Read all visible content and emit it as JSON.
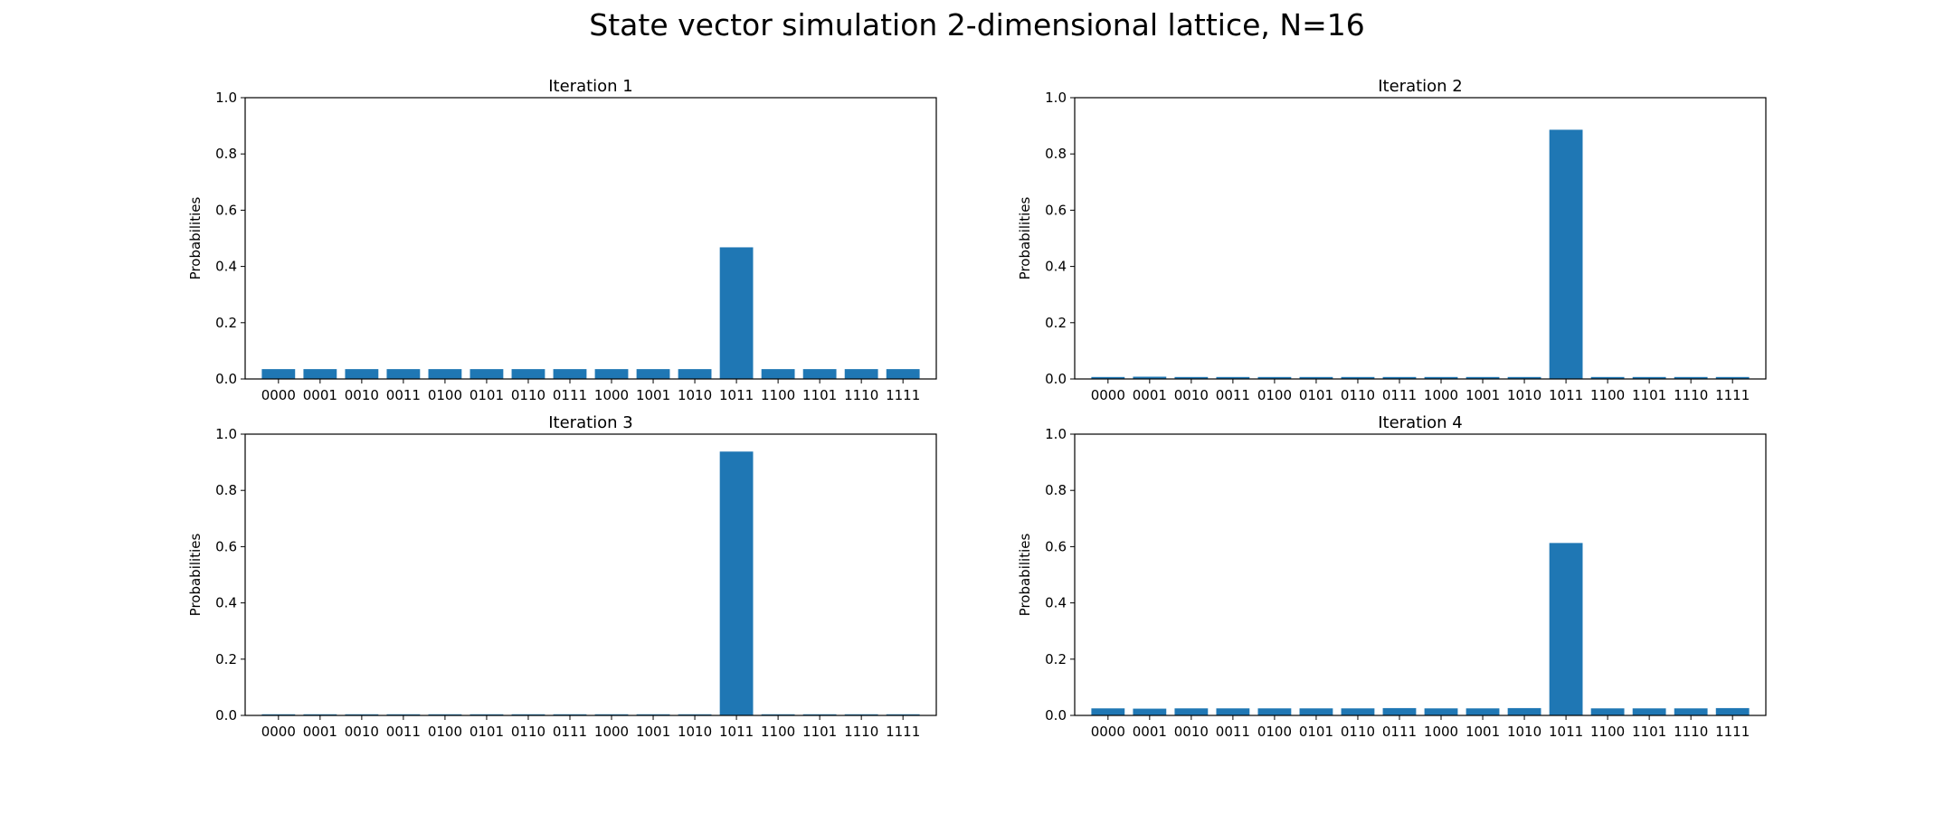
{
  "figure": {
    "title": "State vector simulation 2-dimensional lattice, N=16"
  },
  "colors": {
    "bar": "#1f77b4",
    "axes": "#000000",
    "background": "#ffffff"
  },
  "chart_data": [
    {
      "type": "bar",
      "title": "Iteration 1",
      "xlabel": "",
      "ylabel": "Probabilities",
      "ylim": [
        0,
        1.0
      ],
      "yticks": [
        "0.0",
        "0.2",
        "0.4",
        "0.6",
        "0.8",
        "1.0"
      ],
      "grid": false,
      "categories": [
        "0000",
        "0001",
        "0010",
        "0011",
        "0100",
        "0101",
        "0110",
        "0111",
        "1000",
        "1001",
        "1010",
        "1011",
        "1100",
        "1101",
        "1110",
        "1111"
      ],
      "values": [
        0.035,
        0.035,
        0.035,
        0.035,
        0.035,
        0.035,
        0.035,
        0.035,
        0.035,
        0.035,
        0.035,
        0.468,
        0.035,
        0.035,
        0.035,
        0.035
      ]
    },
    {
      "type": "bar",
      "title": "Iteration 2",
      "xlabel": "",
      "ylabel": "Probabilities",
      "ylim": [
        0,
        1.0
      ],
      "yticks": [
        "0.0",
        "0.2",
        "0.4",
        "0.6",
        "0.8",
        "1.0"
      ],
      "grid": false,
      "categories": [
        "0000",
        "0001",
        "0010",
        "0011",
        "0100",
        "0101",
        "0110",
        "0111",
        "1000",
        "1001",
        "1010",
        "1011",
        "1100",
        "1101",
        "1110",
        "1111"
      ],
      "values": [
        0.007,
        0.008,
        0.007,
        0.007,
        0.007,
        0.007,
        0.007,
        0.007,
        0.007,
        0.007,
        0.007,
        0.886,
        0.007,
        0.007,
        0.007,
        0.007
      ]
    },
    {
      "type": "bar",
      "title": "Iteration 3",
      "xlabel": "",
      "ylabel": "Probabilities",
      "ylim": [
        0,
        1.0
      ],
      "yticks": [
        "0.0",
        "0.2",
        "0.4",
        "0.6",
        "0.8",
        "1.0"
      ],
      "grid": false,
      "categories": [
        "0000",
        "0001",
        "0010",
        "0011",
        "0100",
        "0101",
        "0110",
        "0111",
        "1000",
        "1001",
        "1010",
        "1011",
        "1100",
        "1101",
        "1110",
        "1111"
      ],
      "values": [
        0.004,
        0.004,
        0.004,
        0.004,
        0.004,
        0.004,
        0.004,
        0.004,
        0.004,
        0.004,
        0.004,
        0.938,
        0.004,
        0.004,
        0.004,
        0.004
      ]
    },
    {
      "type": "bar",
      "title": "Iteration 4",
      "xlabel": "",
      "ylabel": "Probabilities",
      "ylim": [
        0,
        1.0
      ],
      "yticks": [
        "0.0",
        "0.2",
        "0.4",
        "0.6",
        "0.8",
        "1.0"
      ],
      "grid": false,
      "categories": [
        "0000",
        "0001",
        "0010",
        "0011",
        "0100",
        "0101",
        "0110",
        "0111",
        "1000",
        "1001",
        "1010",
        "1011",
        "1100",
        "1101",
        "1110",
        "1111"
      ],
      "values": [
        0.025,
        0.024,
        0.025,
        0.025,
        0.025,
        0.025,
        0.025,
        0.026,
        0.025,
        0.025,
        0.026,
        0.613,
        0.025,
        0.025,
        0.025,
        0.026
      ]
    }
  ]
}
